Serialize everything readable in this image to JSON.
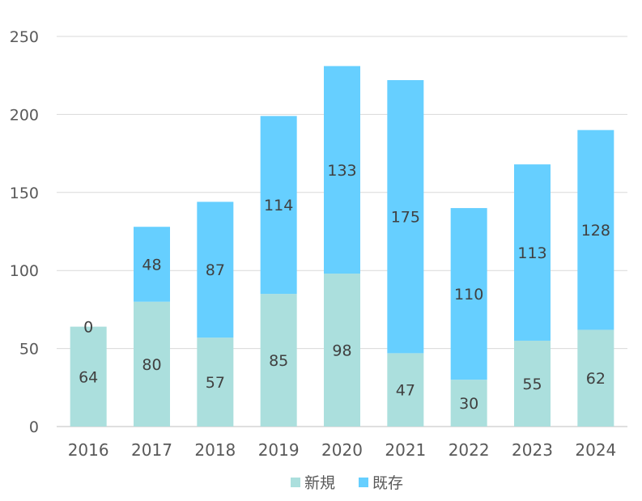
{
  "chart_data": {
    "type": "bar",
    "stacked": true,
    "categories": [
      "2016",
      "2017",
      "2018",
      "2019",
      "2020",
      "2021",
      "2022",
      "2023",
      "2024"
    ],
    "series": [
      {
        "name": "新規",
        "color": "#abdfdd",
        "values": [
          64,
          80,
          57,
          85,
          98,
          47,
          30,
          55,
          62
        ]
      },
      {
        "name": "既存",
        "color": "#66cfff",
        "values": [
          0,
          48,
          87,
          114,
          133,
          175,
          110,
          113,
          128
        ]
      }
    ],
    "ylim": [
      0,
      250
    ],
    "yticks": [
      "0",
      "50",
      "100",
      "150",
      "200",
      "250"
    ],
    "grid": true,
    "legend": "bottom",
    "title": "",
    "xlabel": "",
    "ylabel": ""
  }
}
